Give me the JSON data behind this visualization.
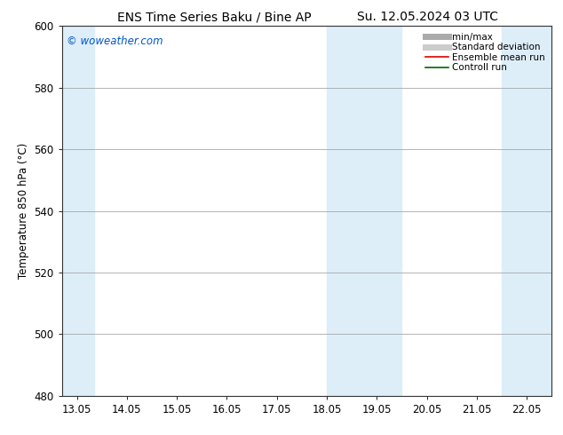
{
  "title_left": "ENS Time Series Baku / Bine AP",
  "title_right": "Su. 12.05.2024 03 UTC",
  "ylabel": "Temperature 850 hPa (°C)",
  "ylim": [
    480,
    600
  ],
  "yticks": [
    480,
    500,
    520,
    540,
    560,
    580,
    600
  ],
  "xtick_labels": [
    "13.05",
    "14.05",
    "15.05",
    "16.05",
    "17.05",
    "18.05",
    "19.05",
    "20.05",
    "21.05",
    "22.05"
  ],
  "xtick_positions": [
    0,
    1,
    2,
    3,
    4,
    5,
    6,
    7,
    8,
    9
  ],
  "xlim": [
    -0.3,
    9.5
  ],
  "shaded_bands": [
    {
      "xmin": -0.3,
      "xmax": 0.35,
      "color": "#ddeef9"
    },
    {
      "xmin": 5.0,
      "xmax": 6.5,
      "color": "#ddeef9"
    },
    {
      "xmin": 8.5,
      "xmax": 9.5,
      "color": "#ddeef9"
    }
  ],
  "watermark_text": "© woweather.com",
  "watermark_color": "#0055cc",
  "legend_items": [
    {
      "label": "min/max",
      "color": "#aaaaaa",
      "linewidth": 5,
      "linestyle": "-"
    },
    {
      "label": "Standard deviation",
      "color": "#cccccc",
      "linewidth": 5,
      "linestyle": "-"
    },
    {
      "label": "Ensemble mean run",
      "color": "#dd0000",
      "linewidth": 1.2,
      "linestyle": "-"
    },
    {
      "label": "Controll run",
      "color": "#006600",
      "linewidth": 1.2,
      "linestyle": "-"
    }
  ],
  "background_color": "#ffffff",
  "grid_color": "#999999",
  "spine_color": "#333333",
  "title_fontsize": 10,
  "tick_fontsize": 8.5,
  "ylabel_fontsize": 8.5,
  "watermark_fontsize": 8.5,
  "legend_fontsize": 7.5
}
